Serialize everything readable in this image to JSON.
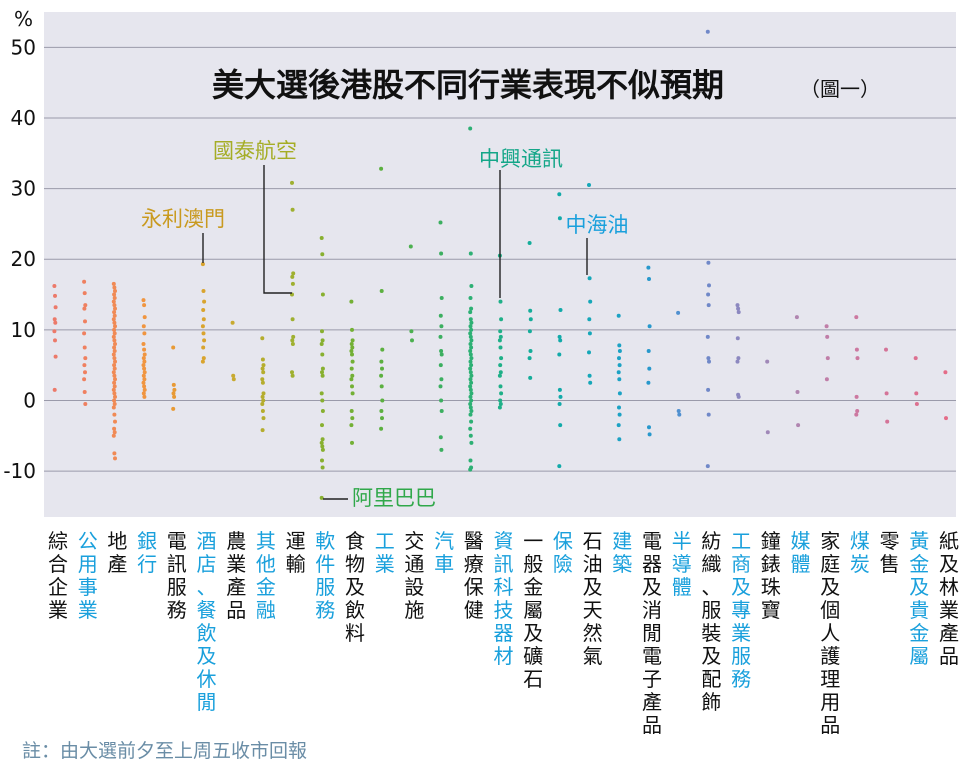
{
  "chart_data": {
    "type": "scatter",
    "title": "美大選後港股不同行業表現不似預期",
    "subtitle": "（圖一）",
    "ylabel": "%",
    "ylim": [
      -16.5,
      55
    ],
    "yticks": [
      50,
      40,
      30,
      20,
      10,
      0,
      -10
    ],
    "grid": true,
    "colors": {
      "plot_background": "#e6e6ee",
      "grid": "#9a9aaa",
      "label_black": "#111111",
      "label_blue": "#1aa0dc"
    },
    "categories": [
      {
        "label": "綜合企業",
        "color": "#ec7a6a",
        "label_color": "black",
        "values": [
          16.2,
          14.8,
          13.2,
          11.5,
          11.0,
          9.8,
          8.5,
          6.2,
          1.5
        ]
      },
      {
        "label": "公用事業",
        "color": "#ef8060",
        "label_color": "blue",
        "values": [
          16.8,
          15.2,
          13.5,
          13.0,
          11.2,
          9.5,
          7.5,
          6.0,
          5.0,
          4.0,
          3.0,
          1.2,
          -0.5
        ]
      },
      {
        "label": "地產",
        "color": "#f08a55",
        "label_color": "black",
        "values": [
          16.5,
          16.0,
          15.5,
          15.0,
          14.5,
          14.0,
          13.5,
          13.0,
          12.5,
          12.0,
          11.5,
          11.0,
          10.5,
          10.0,
          9.5,
          9.0,
          8.5,
          8.0,
          7.5,
          7.0,
          6.5,
          6.0,
          5.5,
          5.0,
          4.5,
          4.0,
          3.5,
          3.0,
          2.5,
          2.0,
          1.5,
          1.0,
          0.5,
          0.0,
          -0.5,
          -1.0,
          -2.0,
          -3.0,
          -4.0,
          -4.5,
          -5.0,
          -7.5,
          -8.2
        ]
      },
      {
        "label": "銀行",
        "color": "#f09540",
        "label_color": "blue",
        "values": [
          14.2,
          13.5,
          11.8,
          10.5,
          9.5,
          8.0,
          7.2,
          6.5,
          6.0,
          5.5,
          5.0,
          4.5,
          4.0,
          3.5,
          3.0,
          2.5,
          2.0,
          1.5,
          1.0,
          0.5
        ]
      },
      {
        "label": "電訊服務",
        "color": "#e89a35",
        "label_color": "black",
        "values": [
          7.5,
          2.2,
          1.5,
          1.0,
          0.5,
          -1.2
        ]
      },
      {
        "label": "酒店、餐飲及休閒",
        "color": "#d9a42e",
        "label_color": "blue",
        "values": [
          19.3,
          15.5,
          14.0,
          12.8,
          11.5,
          10.5,
          9.5,
          8.5,
          7.5,
          6.0,
          5.5
        ]
      },
      {
        "label": "農業產品",
        "color": "#c8aa30",
        "label_color": "black",
        "values": [
          11.0,
          3.5,
          3.0
        ]
      },
      {
        "label": "其他金融",
        "color": "#b5ad2e",
        "label_color": "blue",
        "values": [
          8.8,
          5.8,
          5.0,
          4.5,
          4.0,
          3.0,
          2.5,
          1.0,
          0.5,
          0.0,
          -0.5,
          -1.5,
          -2.5,
          -4.2
        ]
      },
      {
        "label": "運輸",
        "color": "#9fb030",
        "label_color": "black",
        "values": [
          30.8,
          27.0,
          18.0,
          17.5,
          16.5,
          15.0,
          11.5,
          9.0,
          8.5,
          8.0,
          4.0,
          3.5
        ]
      },
      {
        "label": "軟件服務",
        "color": "#88b030",
        "label_color": "blue",
        "values": [
          23.0,
          20.7,
          15.0,
          9.8,
          8.5,
          8.0,
          6.5,
          4.5,
          4.0,
          3.5,
          1.0,
          0.0,
          -1.5,
          -3.5,
          -5.5,
          -6.0,
          -6.5,
          -7.0,
          -8.5,
          -9.5,
          -13.8
        ]
      },
      {
        "label": "食物及飲料",
        "color": "#73b035",
        "label_color": "black",
        "values": [
          14.0,
          10.0,
          8.5,
          8.0,
          7.5,
          7.0,
          6.5,
          5.5,
          4.5,
          3.5,
          3.0,
          2.0,
          1.0,
          -1.5,
          -2.5,
          -3.5,
          -6.0
        ]
      },
      {
        "label": "工業",
        "color": "#5cb040",
        "label_color": "blue",
        "values": [
          32.8,
          15.5,
          7.2,
          5.5,
          4.5,
          3.5,
          2.0,
          0.0,
          -1.5,
          -2.5,
          -4.0
        ]
      },
      {
        "label": "交通設施",
        "color": "#4cb050",
        "label_color": "black",
        "values": [
          21.8,
          9.8,
          8.5
        ]
      },
      {
        "label": "汽車",
        "color": "#3caf60",
        "label_color": "blue",
        "values": [
          25.2,
          20.8,
          14.5,
          12.0,
          10.5,
          9.0,
          7.0,
          6.5,
          5.0,
          3.0,
          2.0,
          0.0,
          -1.5,
          -5.2,
          -7.0
        ]
      },
      {
        "label": "醫療保健",
        "color": "#2db074",
        "label_color": "black",
        "values": [
          38.5,
          20.8,
          16.2,
          14.5,
          13.0,
          12.5,
          11.5,
          11.0,
          10.5,
          10.0,
          9.5,
          9.0,
          8.5,
          8.0,
          7.5,
          7.0,
          6.5,
          6.0,
          5.5,
          5.0,
          4.5,
          4.0,
          3.5,
          3.0,
          2.5,
          2.0,
          1.5,
          1.0,
          0.5,
          0.0,
          -0.5,
          -1.0,
          -1.5,
          -2.0,
          -3.0,
          -4.0,
          -5.0,
          -6.0,
          -8.5,
          -9.5,
          -9.8
        ]
      },
      {
        "label": "資訊科技器材",
        "color": "#1fb088",
        "label_color": "blue",
        "values": [
          20.5,
          14.0,
          11.5,
          9.8,
          9.0,
          8.5,
          7.5,
          6.0,
          5.0,
          4.0,
          3.5,
          2.0,
          1.0,
          0.0,
          -0.5,
          -1.0
        ]
      },
      {
        "label": "一般金屬及礦石",
        "color": "#15ad9a",
        "label_color": "black",
        "values": [
          22.3,
          12.7,
          11.5,
          9.8,
          7.0,
          6.0,
          3.2
        ]
      },
      {
        "label": "保險",
        "color": "#12aaa9",
        "label_color": "blue",
        "values": [
          29.2,
          25.8,
          12.8,
          9.0,
          8.5,
          6.5,
          1.5,
          0.5,
          -0.5,
          -3.5,
          -9.3
        ]
      },
      {
        "label": "石油及天然氣",
        "color": "#15a7b8",
        "label_color": "black",
        "values": [
          30.5,
          17.3,
          14.0,
          11.5,
          9.5,
          6.8,
          3.5,
          2.5
        ]
      },
      {
        "label": "建築",
        "color": "#1ca2c4",
        "label_color": "blue",
        "values": [
          12.0,
          7.8,
          7.0,
          6.0,
          5.0,
          4.0,
          3.0,
          1.0,
          -1.0,
          -2.0,
          -3.5,
          -5.5
        ]
      },
      {
        "label": "電器及消閒電子產品",
        "color": "#2898cc",
        "label_color": "black",
        "values": [
          18.8,
          17.2,
          10.5,
          7.0,
          4.5,
          2.5,
          -3.8,
          -4.8
        ]
      },
      {
        "label": "半導體",
        "color": "#5090d0",
        "label_color": "blue",
        "values": [
          12.4,
          -1.5,
          -2.0
        ]
      },
      {
        "label": "紡織、服裝及配飾",
        "color": "#7088c8",
        "label_color": "black",
        "values": [
          52.2,
          19.5,
          16.3,
          15.0,
          13.5,
          9.0,
          6.0,
          5.5,
          1.5,
          -2.0,
          -9.3
        ]
      },
      {
        "label": "工商及專業服務",
        "color": "#8c88c0",
        "label_color": "blue",
        "values": [
          13.5,
          13.0,
          12.5,
          8.8,
          6.0,
          5.5,
          0.8,
          0.5
        ]
      },
      {
        "label": "鐘錶珠寶",
        "color": "#a088b8",
        "label_color": "black",
        "values": [
          5.5,
          -4.5
        ]
      },
      {
        "label": "媒體",
        "color": "#b085b0",
        "label_color": "blue",
        "values": [
          11.8,
          1.2,
          -3.5
        ]
      },
      {
        "label": "家庭及個人護理用品",
        "color": "#c07ea8",
        "label_color": "black",
        "values": [
          10.5,
          9.0,
          6.0,
          3.0
        ]
      },
      {
        "label": "煤炭",
        "color": "#cc78a0",
        "label_color": "blue",
        "values": [
          11.8,
          7.2,
          6.0,
          0.5,
          -1.5,
          -2.0
        ]
      },
      {
        "label": "零售",
        "color": "#d47498",
        "label_color": "black",
        "values": [
          7.2,
          1.0,
          -3.0
        ]
      },
      {
        "label": "黃金及貴金屬",
        "color": "#dc7090",
        "label_color": "blue",
        "values": [
          6.0,
          1.0,
          -0.5
        ]
      },
      {
        "label": "紙及林業產品",
        "color": "#e46c88",
        "label_color": "black",
        "values": [
          4.0,
          -2.5
        ]
      }
    ],
    "annotations": [
      {
        "text": "國泰航空",
        "color": "#a5ad26",
        "category": 8,
        "value": 15.0
      },
      {
        "text": "永利澳門",
        "color": "#c99a20",
        "category": 5,
        "value": 19.3
      },
      {
        "text": "阿里巴巴",
        "color": "#30a84a",
        "category": 9,
        "value": -13.8
      },
      {
        "text": "中興通訊",
        "color": "#14a688",
        "category": 15,
        "value": 14.0
      },
      {
        "text": "中海油",
        "color": "#1aa0dc",
        "category": 18,
        "value": 17.3
      }
    ]
  },
  "note": "註：由大選前夕至上周五收市回報"
}
